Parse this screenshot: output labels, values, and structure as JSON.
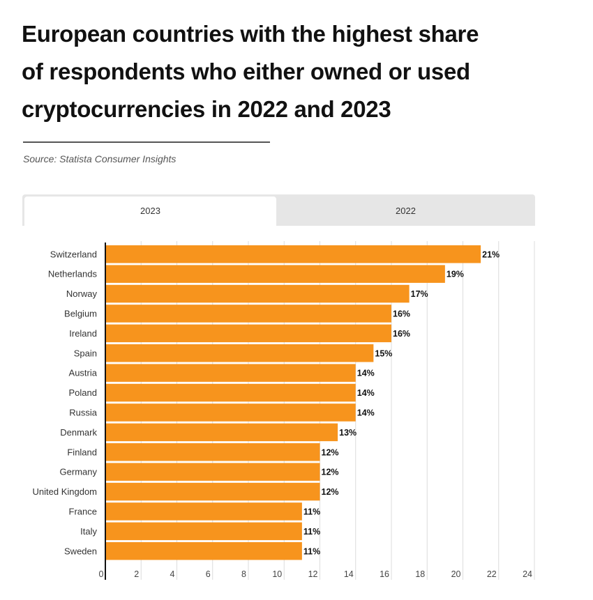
{
  "title_lines": [
    "European countries with the highest share",
    "of respondents who either owned or used",
    "cryptocurrencies in 2022 and 2023"
  ],
  "source": "Source: Statista Consumer Insights",
  "tabs": [
    {
      "label": "2023",
      "active": true
    },
    {
      "label": "2022",
      "active": false
    }
  ],
  "chart_data": {
    "type": "bar",
    "orientation": "horizontal",
    "categories": [
      "Switzerland",
      "Netherlands",
      "Norway",
      "Belgium",
      "Ireland",
      "Spain",
      "Austria",
      "Poland",
      "Russia",
      "Denmark",
      "Finland",
      "Germany",
      "United Kingdom",
      "France",
      "Italy",
      "Sweden"
    ],
    "values": [
      21,
      19,
      17,
      16,
      16,
      15,
      14,
      14,
      14,
      13,
      12,
      12,
      12,
      11,
      11,
      11
    ],
    "data_labels": [
      "21%",
      "19%",
      "17%",
      "16%",
      "16%",
      "15%",
      "14%",
      "14%",
      "14%",
      "13%",
      "12%",
      "12%",
      "12%",
      "11%",
      "11%",
      "11%"
    ],
    "xlim": [
      0,
      24
    ],
    "xticks": [
      "0",
      "2",
      "4",
      "6",
      "8",
      "10",
      "12",
      "14",
      "16",
      "18",
      "20",
      "22",
      "24"
    ],
    "grid": true,
    "bar_color": "#f7941d"
  }
}
